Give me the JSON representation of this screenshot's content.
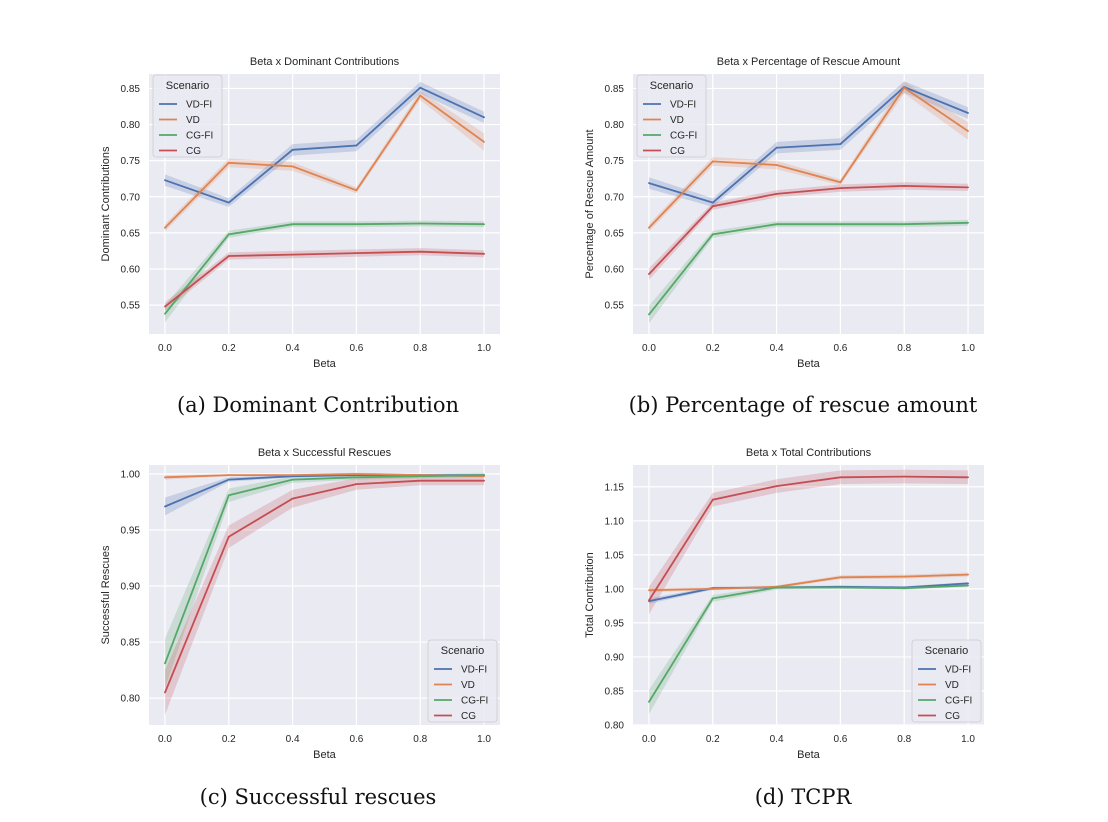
{
  "chart_data": [
    {
      "type": "line",
      "title": "Beta x Dominant Contributions",
      "xlabel": "Beta",
      "ylabel": "Dominant Contributions",
      "caption": "(a) Dominant Contribution",
      "x": [
        0.0,
        0.2,
        0.4,
        0.6,
        0.8,
        1.0
      ],
      "xticks": [
        "0.0",
        "0.2",
        "0.4",
        "0.6",
        "0.8",
        "1.0"
      ],
      "xlim": [
        -0.05,
        1.05
      ],
      "ylim": [
        0.51,
        0.87
      ],
      "yticks": [
        "0.55",
        "0.60",
        "0.65",
        "0.70",
        "0.75",
        "0.80",
        "0.85"
      ],
      "legend": {
        "title": "Scenario",
        "placement": "top-left"
      },
      "grid": true,
      "series": [
        {
          "name": "VD-FI",
          "color": "#4c72b0",
          "values": [
            0.723,
            0.692,
            0.765,
            0.771,
            0.851,
            0.81
          ],
          "band": [
            0.008,
            0.006,
            0.008,
            0.008,
            0.008,
            0.008
          ]
        },
        {
          "name": "VD",
          "color": "#dd8452",
          "values": [
            0.657,
            0.747,
            0.742,
            0.709,
            0.84,
            0.776
          ],
          "band": [
            0.005,
            0.006,
            0.006,
            0.004,
            0.006,
            0.012
          ]
        },
        {
          "name": "CG-FI",
          "color": "#55a868",
          "values": [
            0.538,
            0.648,
            0.662,
            0.662,
            0.663,
            0.662
          ],
          "band": [
            0.012,
            0.005,
            0.004,
            0.004,
            0.004,
            0.004
          ]
        },
        {
          "name": "CG",
          "color": "#c44e52",
          "values": [
            0.548,
            0.618,
            0.62,
            0.622,
            0.624,
            0.621
          ],
          "band": [
            0.006,
            0.005,
            0.005,
            0.005,
            0.005,
            0.005
          ]
        }
      ]
    },
    {
      "type": "line",
      "title": "Beta x Percentage of Rescue Amount",
      "xlabel": "Beta",
      "ylabel": "Percentage of Rescue Amount",
      "caption": "(b) Percentage of rescue amount",
      "x": [
        0.0,
        0.2,
        0.4,
        0.6,
        0.8,
        1.0
      ],
      "xticks": [
        "0.0",
        "0.2",
        "0.4",
        "0.6",
        "0.8",
        "1.0"
      ],
      "xlim": [
        -0.05,
        1.05
      ],
      "ylim": [
        0.51,
        0.87
      ],
      "yticks": [
        "0.55",
        "0.60",
        "0.65",
        "0.70",
        "0.75",
        "0.80",
        "0.85"
      ],
      "legend": {
        "title": "Scenario",
        "placement": "top-left"
      },
      "grid": true,
      "series": [
        {
          "name": "VD-FI",
          "color": "#4c72b0",
          "values": [
            0.719,
            0.692,
            0.768,
            0.773,
            0.852,
            0.816
          ],
          "band": [
            0.008,
            0.006,
            0.008,
            0.008,
            0.008,
            0.008
          ]
        },
        {
          "name": "VD",
          "color": "#dd8452",
          "values": [
            0.657,
            0.749,
            0.744,
            0.72,
            0.851,
            0.791
          ],
          "band": [
            0.005,
            0.006,
            0.006,
            0.004,
            0.008,
            0.012
          ]
        },
        {
          "name": "CG-FI",
          "color": "#55a868",
          "values": [
            0.537,
            0.648,
            0.662,
            0.662,
            0.662,
            0.664
          ],
          "band": [
            0.012,
            0.005,
            0.004,
            0.004,
            0.004,
            0.004
          ]
        },
        {
          "name": "CG",
          "color": "#c44e52",
          "values": [
            0.593,
            0.687,
            0.704,
            0.712,
            0.715,
            0.713
          ],
          "band": [
            0.008,
            0.005,
            0.005,
            0.005,
            0.005,
            0.005
          ]
        }
      ]
    },
    {
      "type": "line",
      "title": "Beta x Successful Rescues",
      "xlabel": "Beta",
      "ylabel": "Successful Rescues",
      "caption": "(c) Successful rescues",
      "x": [
        0.0,
        0.2,
        0.4,
        0.6,
        0.8,
        1.0
      ],
      "xticks": [
        "0.0",
        "0.2",
        "0.4",
        "0.6",
        "0.8",
        "1.0"
      ],
      "xlim": [
        -0.05,
        1.05
      ],
      "ylim": [
        0.776,
        1.008
      ],
      "yticks": [
        "0.80",
        "0.85",
        "0.90",
        "0.95",
        "1.00"
      ],
      "legend": {
        "title": "Scenario",
        "placement": "bottom-right"
      },
      "grid": true,
      "series": [
        {
          "name": "VD-FI",
          "color": "#4c72b0",
          "values": [
            0.971,
            0.995,
            0.998,
            0.999,
            0.999,
            0.999
          ],
          "band": [
            0.008,
            0.002,
            0.001,
            0.001,
            0.001,
            0.001
          ]
        },
        {
          "name": "VD",
          "color": "#dd8452",
          "values": [
            0.997,
            0.999,
            0.999,
            1.0,
            0.999,
            0.998
          ],
          "band": [
            0.002,
            0.001,
            0.001,
            0.001,
            0.001,
            0.001
          ]
        },
        {
          "name": "CG-FI",
          "color": "#55a868",
          "values": [
            0.831,
            0.981,
            0.995,
            0.997,
            0.998,
            0.999
          ],
          "band": [
            0.022,
            0.006,
            0.003,
            0.002,
            0.002,
            0.002
          ]
        },
        {
          "name": "CG",
          "color": "#c44e52",
          "values": [
            0.805,
            0.944,
            0.978,
            0.991,
            0.994,
            0.994
          ],
          "band": [
            0.02,
            0.01,
            0.008,
            0.005,
            0.004,
            0.004
          ]
        }
      ]
    },
    {
      "type": "line",
      "title": "Beta x Total Contributions",
      "xlabel": "Beta",
      "ylabel": "Total Contribution",
      "caption": "(d) TCPR",
      "x": [
        0.0,
        0.2,
        0.4,
        0.6,
        0.8,
        1.0
      ],
      "xticks": [
        "0.0",
        "0.2",
        "0.4",
        "0.6",
        "0.8",
        "1.0"
      ],
      "xlim": [
        -0.05,
        1.05
      ],
      "ylim": [
        0.8,
        1.182
      ],
      "yticks": [
        "0.80",
        "0.85",
        "0.90",
        "0.95",
        "1.00",
        "1.05",
        "1.10",
        "1.15"
      ],
      "legend": {
        "title": "Scenario",
        "placement": "bottom-right"
      },
      "grid": true,
      "series": [
        {
          "name": "VD-FI",
          "color": "#4c72b0",
          "values": [
            0.982,
            1.001,
            1.002,
            1.003,
            1.002,
            1.008
          ],
          "band": [
            0.004,
            0.002,
            0.002,
            0.002,
            0.002,
            0.002
          ]
        },
        {
          "name": "VD",
          "color": "#dd8452",
          "values": [
            0.998,
            1.0,
            1.003,
            1.017,
            1.018,
            1.021
          ],
          "band": [
            0.003,
            0.002,
            0.002,
            0.003,
            0.003,
            0.003
          ]
        },
        {
          "name": "CG-FI",
          "color": "#55a868",
          "values": [
            0.834,
            0.986,
            1.002,
            1.002,
            1.001,
            1.005
          ],
          "band": [
            0.018,
            0.005,
            0.003,
            0.002,
            0.002,
            0.002
          ]
        },
        {
          "name": "CG",
          "color": "#c44e52",
          "values": [
            0.983,
            1.131,
            1.151,
            1.164,
            1.165,
            1.164
          ],
          "band": [
            0.02,
            0.01,
            0.01,
            0.01,
            0.01,
            0.01
          ]
        }
      ]
    }
  ]
}
